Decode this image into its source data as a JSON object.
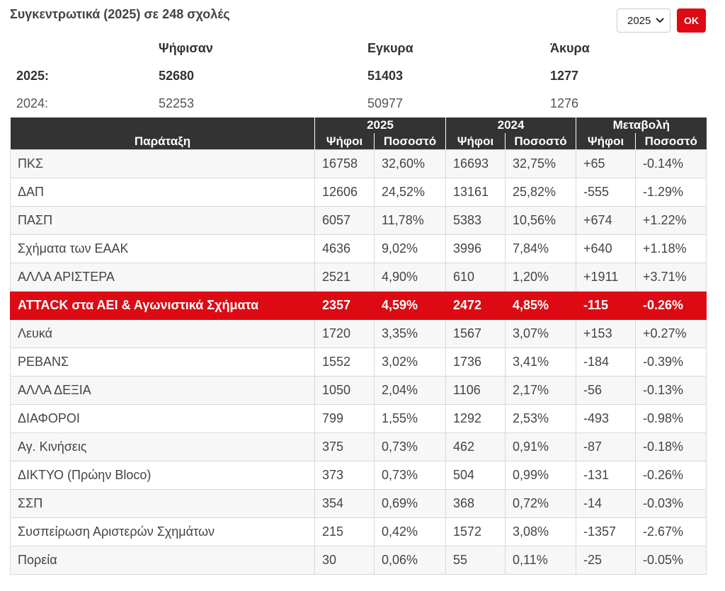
{
  "header": {
    "title": "Συγκεντρωτικά (2025) σε 248 σχολές",
    "year_selected": "2025",
    "ok_label": "OK"
  },
  "summary": {
    "headers": [
      "Ψήφισαν",
      "Εγκυρα",
      "Άκυρα"
    ],
    "rows": [
      {
        "year": "2025:",
        "voted": "52680",
        "valid": "51403",
        "invalid": "1277"
      },
      {
        "year": "2024:",
        "voted": "52253",
        "valid": "50977",
        "invalid": "1276"
      }
    ]
  },
  "table": {
    "col_party": "Παράταξη",
    "group_2025": "2025",
    "group_2024": "2024",
    "group_change": "Μεταβολή",
    "votes": "Ψήφοι",
    "percent": "Ποσοστό",
    "rows": [
      {
        "party": "ΠΚΣ",
        "v25": "16758",
        "p25": "32,60%",
        "v24": "16693",
        "p24": "32,75%",
        "dv": "+65",
        "dp": "-0.14%"
      },
      {
        "party": "ΔΑΠ",
        "v25": "12606",
        "p25": "24,52%",
        "v24": "13161",
        "p24": "25,82%",
        "dv": "-555",
        "dp": "-1.29%"
      },
      {
        "party": "ΠΑΣΠ",
        "v25": "6057",
        "p25": "11,78%",
        "v24": "5383",
        "p24": "10,56%",
        "dv": "+674",
        "dp": "+1.22%"
      },
      {
        "party": "Σχήματα των ΕΑΑΚ",
        "v25": "4636",
        "p25": "9,02%",
        "v24": "3996",
        "p24": "7,84%",
        "dv": "+640",
        "dp": "+1.18%"
      },
      {
        "party": "ΑΛΛΑ ΑΡΙΣΤΕΡΑ",
        "v25": "2521",
        "p25": "4,90%",
        "v24": "610",
        "p24": "1,20%",
        "dv": "+1911",
        "dp": "+3.71%"
      },
      {
        "party": "ATTACK στα ΑΕΙ & Αγωνιστικά Σχήματα",
        "v25": "2357",
        "p25": "4,59%",
        "v24": "2472",
        "p24": "4,85%",
        "dv": "-115",
        "dp": "-0.26%",
        "highlight": true
      },
      {
        "party": "Λευκά",
        "v25": "1720",
        "p25": "3,35%",
        "v24": "1567",
        "p24": "3,07%",
        "dv": "+153",
        "dp": "+0.27%"
      },
      {
        "party": "ΡΕΒΑΝΣ",
        "v25": "1552",
        "p25": "3,02%",
        "v24": "1736",
        "p24": "3,41%",
        "dv": "-184",
        "dp": "-0.39%"
      },
      {
        "party": "ΑΛΛΑ ΔΕΞΙΑ",
        "v25": "1050",
        "p25": "2,04%",
        "v24": "1106",
        "p24": "2,17%",
        "dv": "-56",
        "dp": "-0.13%"
      },
      {
        "party": "ΔΙΑΦΟΡΟΙ",
        "v25": "799",
        "p25": "1,55%",
        "v24": "1292",
        "p24": "2,53%",
        "dv": "-493",
        "dp": "-0.98%"
      },
      {
        "party": "Αγ. Κινήσεις",
        "v25": "375",
        "p25": "0,73%",
        "v24": "462",
        "p24": "0,91%",
        "dv": "-87",
        "dp": "-0.18%"
      },
      {
        "party": "ΔΙΚΤΥΟ (Πρώην Bloco)",
        "v25": "373",
        "p25": "0,73%",
        "v24": "504",
        "p24": "0,99%",
        "dv": "-131",
        "dp": "-0.26%"
      },
      {
        "party": "ΣΣΠ",
        "v25": "354",
        "p25": "0,69%",
        "v24": "368",
        "p24": "0,72%",
        "dv": "-14",
        "dp": "-0.03%"
      },
      {
        "party": "Συσπείρωση Αριστερών Σχημάτων",
        "v25": "215",
        "p25": "0,42%",
        "v24": "1572",
        "p24": "3,08%",
        "dv": "-1357",
        "dp": "-2.67%"
      },
      {
        "party": "Πορεία",
        "v25": "30",
        "p25": "0,06%",
        "v24": "55",
        "p24": "0,11%",
        "dv": "-25",
        "dp": "-0.05%"
      }
    ]
  },
  "colors": {
    "accent": "#dd0a14",
    "header_bg": "#333333"
  }
}
